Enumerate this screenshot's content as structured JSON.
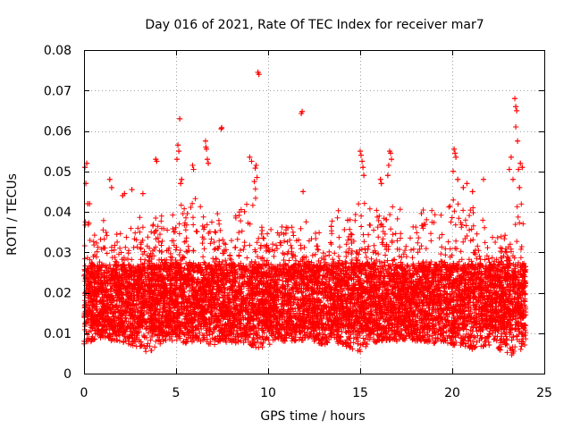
{
  "chart_data": {
    "type": "scatter",
    "title": "Day 016 of 2021, Rate Of TEC Index for receiver mar7",
    "xlabel": "GPS time / hours",
    "ylabel": "ROTI / TECUs",
    "xlim": [
      0,
      25
    ],
    "ylim": [
      0,
      0.08
    ],
    "xticks": [
      "0",
      "5",
      "10",
      "15",
      "20",
      "25"
    ],
    "yticks": [
      "0",
      "0.01",
      "0.02",
      "0.03",
      "0.04",
      "0.05",
      "0.06",
      "0.07",
      "0.08"
    ],
    "grid": true,
    "marker": "+",
    "color": "#ff0000",
    "envelope": {
      "x": [
        0,
        0.5,
        1,
        1.5,
        2,
        2.5,
        3,
        3.5,
        4,
        4.5,
        5,
        5.5,
        6,
        6.5,
        7,
        7.5,
        8,
        8.5,
        9,
        9.5,
        10,
        10.5,
        11,
        11.5,
        12,
        12.5,
        13,
        13.5,
        14,
        14.5,
        15,
        15.5,
        16,
        16.5,
        17,
        17.5,
        18,
        18.5,
        19,
        19.5,
        20,
        20.5,
        21,
        21.5,
        22,
        22.5,
        23,
        23.5,
        24
      ],
      "upper": [
        0.042,
        0.035,
        0.038,
        0.037,
        0.035,
        0.037,
        0.039,
        0.034,
        0.04,
        0.038,
        0.043,
        0.041,
        0.045,
        0.04,
        0.042,
        0.038,
        0.037,
        0.043,
        0.047,
        0.045,
        0.035,
        0.038,
        0.039,
        0.036,
        0.038,
        0.036,
        0.037,
        0.041,
        0.04,
        0.038,
        0.043,
        0.042,
        0.04,
        0.041,
        0.043,
        0.038,
        0.037,
        0.042,
        0.041,
        0.04,
        0.046,
        0.044,
        0.042,
        0.04,
        0.037,
        0.034,
        0.036,
        0.045,
        0.041
      ],
      "lower": [
        0.007,
        0.008,
        0.009,
        0.008,
        0.008,
        0.007,
        0.006,
        0.005,
        0.007,
        0.008,
        0.008,
        0.007,
        0.008,
        0.007,
        0.007,
        0.008,
        0.007,
        0.008,
        0.007,
        0.006,
        0.007,
        0.008,
        0.008,
        0.008,
        0.008,
        0.008,
        0.007,
        0.008,
        0.007,
        0.006,
        0.005,
        0.007,
        0.008,
        0.008,
        0.008,
        0.008,
        0.008,
        0.008,
        0.007,
        0.008,
        0.007,
        0.007,
        0.006,
        0.006,
        0.007,
        0.006,
        0.005,
        0.004,
        0.007
      ],
      "core_low": 0.011,
      "core_high": 0.027
    },
    "outliers": [
      {
        "x": 0.05,
        "y": 0.051
      },
      {
        "x": 0.15,
        "y": 0.052
      },
      {
        "x": 0.1,
        "y": 0.047
      },
      {
        "x": 0.2,
        "y": 0.042
      },
      {
        "x": 0.3,
        "y": 0.042
      },
      {
        "x": 1.4,
        "y": 0.048
      },
      {
        "x": 1.5,
        "y": 0.046
      },
      {
        "x": 2.1,
        "y": 0.044
      },
      {
        "x": 2.2,
        "y": 0.0445
      },
      {
        "x": 2.6,
        "y": 0.0455
      },
      {
        "x": 3.2,
        "y": 0.0445
      },
      {
        "x": 3.9,
        "y": 0.053
      },
      {
        "x": 3.95,
        "y": 0.0525
      },
      {
        "x": 5.1,
        "y": 0.0565
      },
      {
        "x": 5.15,
        "y": 0.055
      },
      {
        "x": 5.2,
        "y": 0.063
      },
      {
        "x": 5.05,
        "y": 0.053
      },
      {
        "x": 5.3,
        "y": 0.048
      },
      {
        "x": 5.25,
        "y": 0.047
      },
      {
        "x": 5.9,
        "y": 0.0515
      },
      {
        "x": 5.95,
        "y": 0.0505
      },
      {
        "x": 6.6,
        "y": 0.0575
      },
      {
        "x": 6.62,
        "y": 0.056
      },
      {
        "x": 6.65,
        "y": 0.0555
      },
      {
        "x": 6.7,
        "y": 0.053
      },
      {
        "x": 6.75,
        "y": 0.052
      },
      {
        "x": 7.45,
        "y": 0.0605
      },
      {
        "x": 7.48,
        "y": 0.0608
      },
      {
        "x": 9.0,
        "y": 0.0535
      },
      {
        "x": 9.1,
        "y": 0.0525
      },
      {
        "x": 9.3,
        "y": 0.0508
      },
      {
        "x": 9.35,
        "y": 0.0515
      },
      {
        "x": 9.45,
        "y": 0.0745
      },
      {
        "x": 9.5,
        "y": 0.074
      },
      {
        "x": 9.4,
        "y": 0.0485
      },
      {
        "x": 9.25,
        "y": 0.0475
      },
      {
        "x": 11.8,
        "y": 0.0643
      },
      {
        "x": 11.85,
        "y": 0.0648
      },
      {
        "x": 11.9,
        "y": 0.045
      },
      {
        "x": 15.0,
        "y": 0.055
      },
      {
        "x": 15.05,
        "y": 0.054
      },
      {
        "x": 15.1,
        "y": 0.0525
      },
      {
        "x": 15.15,
        "y": 0.051
      },
      {
        "x": 15.2,
        "y": 0.049
      },
      {
        "x": 16.1,
        "y": 0.048
      },
      {
        "x": 16.15,
        "y": 0.047
      },
      {
        "x": 16.6,
        "y": 0.055
      },
      {
        "x": 16.65,
        "y": 0.0545
      },
      {
        "x": 16.7,
        "y": 0.053
      },
      {
        "x": 16.55,
        "y": 0.0515
      },
      {
        "x": 16.5,
        "y": 0.049
      },
      {
        "x": 20.1,
        "y": 0.0555
      },
      {
        "x": 20.15,
        "y": 0.0545
      },
      {
        "x": 20.2,
        "y": 0.0535
      },
      {
        "x": 20.05,
        "y": 0.05
      },
      {
        "x": 20.3,
        "y": 0.048
      },
      {
        "x": 20.6,
        "y": 0.046
      },
      {
        "x": 20.8,
        "y": 0.047
      },
      {
        "x": 21.1,
        "y": 0.045
      },
      {
        "x": 21.7,
        "y": 0.048
      },
      {
        "x": 23.1,
        "y": 0.0505
      },
      {
        "x": 23.2,
        "y": 0.0535
      },
      {
        "x": 23.4,
        "y": 0.068
      },
      {
        "x": 23.45,
        "y": 0.066
      },
      {
        "x": 23.5,
        "y": 0.065
      },
      {
        "x": 23.45,
        "y": 0.061
      },
      {
        "x": 23.55,
        "y": 0.0575
      },
      {
        "x": 23.6,
        "y": 0.0505
      },
      {
        "x": 23.7,
        "y": 0.052
      },
      {
        "x": 23.8,
        "y": 0.051
      },
      {
        "x": 23.3,
        "y": 0.048
      },
      {
        "x": 23.65,
        "y": 0.046
      }
    ]
  }
}
